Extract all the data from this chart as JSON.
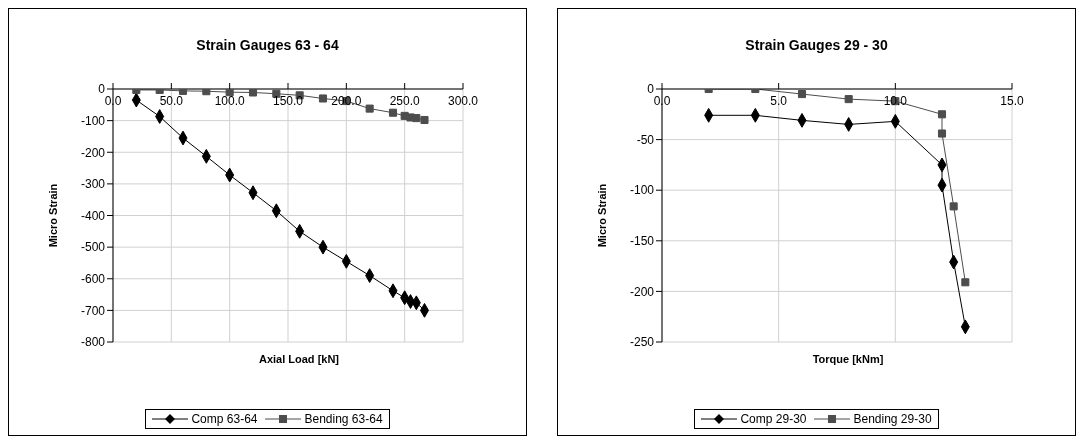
{
  "chart_data": [
    {
      "type": "line",
      "title": "Strain Gauges 63 - 64",
      "xlabel": "Axial Load [kN]",
      "ylabel": "Micro Strain",
      "x": [
        20,
        40,
        60,
        80,
        100,
        120,
        140,
        160,
        180,
        200,
        220,
        240,
        250,
        255,
        260,
        267
      ],
      "series": [
        {
          "name": "Comp 63-64",
          "color": "#000000",
          "marker": "diamond",
          "values": [
            -35,
            -87,
            -155,
            -213,
            -272,
            -328,
            -385,
            -450,
            -500,
            -545,
            -590,
            -638,
            -660,
            -672,
            -676,
            -700
          ]
        },
        {
          "name": "Bending 63-64",
          "color": "#4d4d4d",
          "marker": "square",
          "values": [
            -3,
            -3,
            -6,
            -7,
            -10,
            -11,
            -15,
            -20,
            -30,
            -38,
            -62,
            -75,
            -85,
            -90,
            -92,
            -98
          ]
        }
      ],
      "xlim": [
        0,
        300
      ],
      "xticks": [
        {
          "value": 0,
          "label": "0.0"
        },
        {
          "value": 50,
          "label": "50.0"
        },
        {
          "value": 100,
          "label": "100.0"
        },
        {
          "value": 150,
          "label": "150.0"
        },
        {
          "value": 200,
          "label": "200.0"
        },
        {
          "value": 250,
          "label": "250.0"
        },
        {
          "value": 300,
          "label": "300.0"
        }
      ],
      "ylim": [
        -800,
        0
      ],
      "yticks": [
        0,
        -100,
        -200,
        -300,
        -400,
        -500,
        -600,
        -700,
        -800
      ],
      "grid": true,
      "legend": "bottom"
    },
    {
      "type": "line",
      "title": "Strain Gauges 29 - 30",
      "xlabel": "Torque [kNm]",
      "ylabel": "Micro Strain",
      "x": [
        2,
        4,
        6,
        8,
        10,
        12,
        12,
        12.5,
        13
      ],
      "series": [
        {
          "name": "Comp 29-30",
          "color": "#000000",
          "marker": "diamond",
          "values": [
            -26,
            -26,
            -31,
            -35,
            -32,
            -75,
            -95,
            -171,
            -235
          ]
        },
        {
          "name": "Bending 29-30",
          "color": "#4d4d4d",
          "marker": "square",
          "values": [
            0,
            0,
            -5,
            -10,
            -12,
            -25,
            -44,
            -116,
            -191
          ]
        }
      ],
      "xlim": [
        0,
        15
      ],
      "xticks": [
        {
          "value": 0,
          "label": "0.0"
        },
        {
          "value": 5,
          "label": "5.0"
        },
        {
          "value": 10,
          "label": "10.0"
        },
        {
          "value": 15,
          "label": "15.0"
        }
      ],
      "ylim": [
        -250,
        0
      ],
      "yticks": [
        0,
        -50,
        -100,
        -150,
        -200,
        -250
      ],
      "grid": true,
      "legend": "bottom"
    }
  ]
}
